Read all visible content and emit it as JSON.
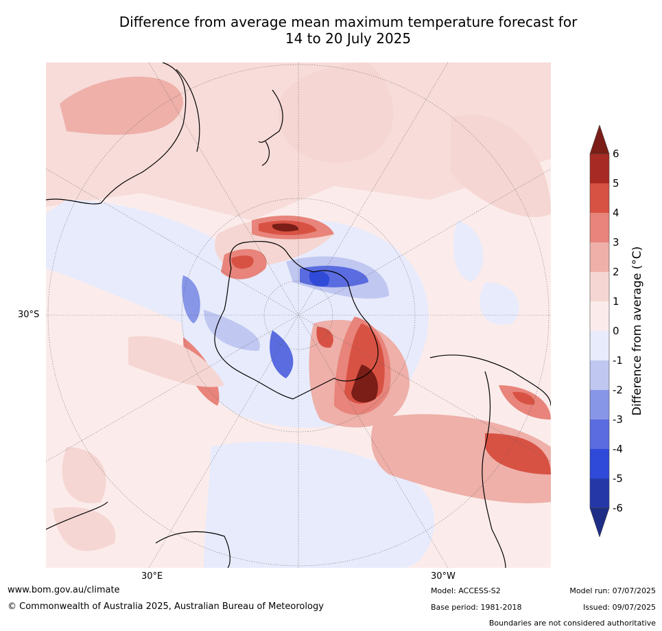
{
  "title_line1": "Difference from average mean maximum temperature forecast for",
  "title_line2": "14 to 20 July 2025",
  "map": {
    "projection": "south-polar-stereographic",
    "lat_label": "30°S",
    "lon_labels": {
      "left": "30°E",
      "right": "30°W"
    }
  },
  "legend": {
    "label": "Difference from average (°C)",
    "ticks": [
      "6",
      "5",
      "4",
      "3",
      "2",
      "1",
      "0",
      "-1",
      "-2",
      "-3",
      "-4",
      "-5",
      "-6"
    ],
    "colors": [
      "#7a1e17",
      "#a82a24",
      "#d85244",
      "#e8847b",
      "#eeb0a9",
      "#f5d6d2",
      "#fbeceb",
      "#e8ebfb",
      "#c0c7f1",
      "#8896e8",
      "#5a6ce0",
      "#2f4ad8",
      "#2537a7",
      "#1e2d85"
    ],
    "extends": "both"
  },
  "footer": {
    "website": "www.bom.gov.au/climate",
    "copyright": "© Commonwealth of Australia 2025, Australian Bureau of Meteorology",
    "model": "Model: ACCESS-S2",
    "base_period": "Base period: 1981-2018",
    "model_run": "Model run: 07/07/2025",
    "issued": "Issued: 09/07/2025",
    "disclaimer": "Boundaries are not considered authoritative"
  }
}
